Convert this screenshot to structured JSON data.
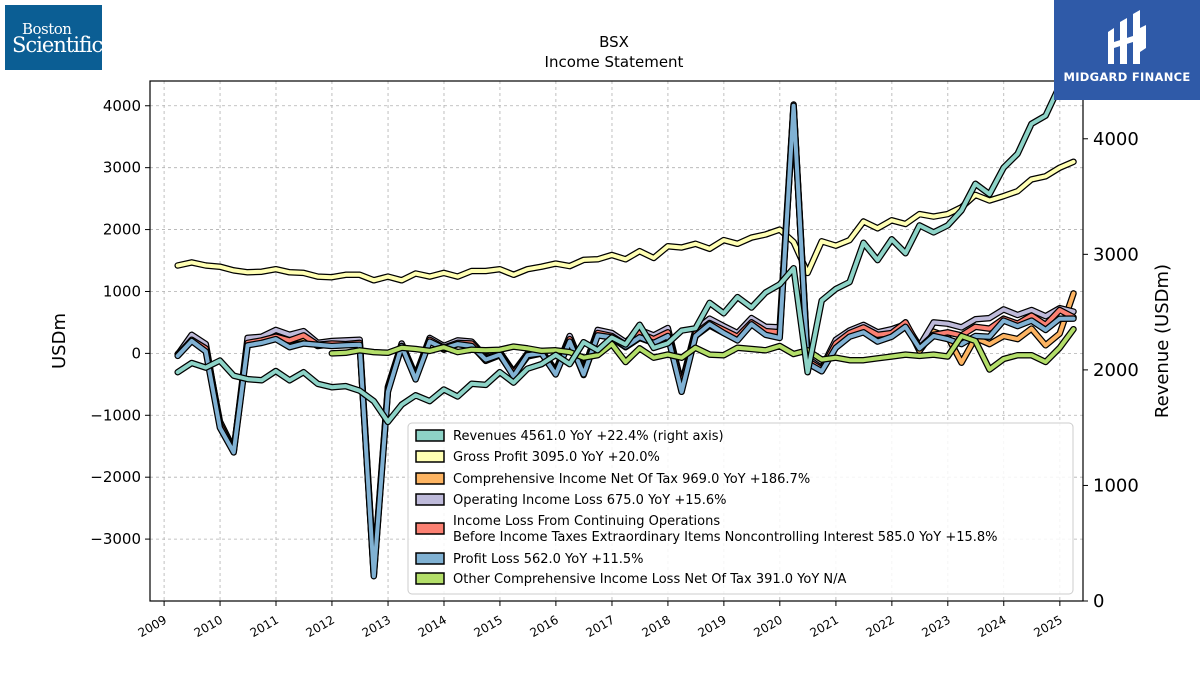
{
  "logos": {
    "left": {
      "line1": "Boston",
      "line2": "Scientific"
    },
    "right": {
      "brand": "MIDGARD FINANCE"
    }
  },
  "chart_data": {
    "type": "line",
    "title": "BSX",
    "subtitle": "Income Statement",
    "ylabel_left": "USDm",
    "ylabel_right": "Revenue (USDm)",
    "ylim_left": [
      -4000,
      4400
    ],
    "ylim_right": [
      0,
      4500
    ],
    "yticks_left": [
      4000,
      3000,
      2000,
      1000,
      0,
      -1000,
      -2000,
      -3000
    ],
    "yticks_left_labels": [
      "4000",
      "3000",
      "2000",
      "1000",
      "0",
      "−1000",
      "−2000",
      "−3000"
    ],
    "yticks_right": [
      4000,
      3000,
      2000,
      1000,
      0
    ],
    "yticks_right_labels": [
      "4000",
      "3000",
      "2000",
      "1000",
      "0"
    ],
    "xticks": [
      "2009",
      "2010",
      "2011",
      "2012",
      "2013",
      "2014",
      "2015",
      "2016",
      "2017",
      "2018",
      "2019",
      "2020",
      "2021",
      "2022",
      "2023",
      "2024",
      "2025"
    ],
    "grid": true,
    "legend_position": "lower right",
    "x": [
      "2009-03-31",
      "2009-06-30",
      "2009-09-30",
      "2009-12-31",
      "2010-03-31",
      "2010-06-30",
      "2010-09-30",
      "2010-12-31",
      "2011-03-31",
      "2011-06-30",
      "2011-09-30",
      "2011-12-31",
      "2012-03-31",
      "2012-06-30",
      "2012-09-30",
      "2012-12-31",
      "2013-03-31",
      "2013-06-30",
      "2013-09-30",
      "2013-12-31",
      "2014-03-31",
      "2014-06-30",
      "2014-09-30",
      "2014-12-31",
      "2015-03-31",
      "2015-06-30",
      "2015-09-30",
      "2015-12-31",
      "2016-03-31",
      "2016-06-30",
      "2016-09-30",
      "2016-12-31",
      "2017-03-31",
      "2017-06-30",
      "2017-09-30",
      "2017-12-31",
      "2018-03-31",
      "2018-06-30",
      "2018-09-30",
      "2018-12-31",
      "2019-03-31",
      "2019-06-30",
      "2019-09-30",
      "2019-12-31",
      "2020-03-31",
      "2020-06-30",
      "2020-09-30",
      "2020-12-31",
      "2021-03-31",
      "2021-06-30",
      "2021-09-30",
      "2021-12-31",
      "2022-03-31",
      "2022-06-30",
      "2022-09-30",
      "2022-12-31",
      "2023-03-31",
      "2023-06-30",
      "2023-09-30",
      "2023-12-31",
      "2024-03-31",
      "2024-06-30",
      "2024-09-30",
      "2024-12-31",
      "2025-03-31"
    ],
    "series": [
      {
        "name": "Revenues",
        "legend": "Revenues  4561.0 YoY +22.4% (right axis)",
        "axis": "right",
        "color": "#8dd3c7",
        "values": [
          1980,
          2060,
          2020,
          2080,
          1950,
          1920,
          1910,
          1990,
          1910,
          1980,
          1880,
          1850,
          1860,
          1820,
          1730,
          1550,
          1700,
          1780,
          1730,
          1830,
          1770,
          1880,
          1870,
          1980,
          1890,
          2010,
          2050,
          2130,
          2050,
          2240,
          2170,
          2280,
          2220,
          2390,
          2190,
          2230,
          2340,
          2360,
          2580,
          2490,
          2630,
          2540,
          2670,
          2740,
          2880,
          1980,
          2600,
          2700,
          2760,
          3100,
          2950,
          3130,
          3010,
          3250,
          3190,
          3250,
          3380,
          3610,
          3520,
          3750,
          3870,
          4130,
          4200,
          4460,
          4561
        ]
      },
      {
        "name": "Gross Profit",
        "legend": "Gross Profit  3095.0 YoY +20.0%",
        "axis": "left",
        "color": "#ffffb3",
        "values": [
          1420,
          1470,
          1420,
          1400,
          1340,
          1310,
          1320,
          1360,
          1310,
          1300,
          1240,
          1230,
          1270,
          1270,
          1180,
          1240,
          1180,
          1290,
          1240,
          1300,
          1240,
          1330,
          1330,
          1360,
          1270,
          1360,
          1400,
          1450,
          1410,
          1510,
          1520,
          1590,
          1520,
          1650,
          1540,
          1730,
          1710,
          1770,
          1690,
          1830,
          1770,
          1870,
          1920,
          2000,
          1800,
          1300,
          1810,
          1740,
          1830,
          2130,
          2020,
          2150,
          2090,
          2250,
          2210,
          2250,
          2360,
          2560,
          2470,
          2540,
          2620,
          2810,
          2860,
          3000,
          3095
        ]
      },
      {
        "name": "Comprehensive Income Net Of Tax",
        "legend": "Comprehensive Income Net Of Tax  969.0 YoY +186.7%",
        "axis": "left",
        "color": "#fdb462",
        "values": [
          -10,
          210,
          100,
          -1100,
          -1550,
          150,
          190,
          290,
          210,
          250,
          120,
          150,
          140,
          160,
          -3580,
          -600,
          110,
          -400,
          210,
          60,
          150,
          130,
          -120,
          -30,
          -350,
          -50,
          0,
          -320,
          200,
          -350,
          300,
          250,
          100,
          250,
          170,
          270,
          -550,
          280,
          450,
          330,
          220,
          470,
          330,
          290,
          3980,
          -150,
          -280,
          120,
          310,
          390,
          280,
          290,
          500,
          40,
          350,
          270,
          -150,
          250,
          150,
          280,
          230,
          400,
          130,
          320,
          969
        ]
      },
      {
        "name": "Operating Income Loss",
        "legend": "Operating Income Loss  675.0 YoY +15.6%",
        "axis": "left",
        "color": "#bebada",
        "values": [
          -20,
          300,
          150,
          -1150,
          -1580,
          250,
          270,
          380,
          300,
          360,
          170,
          200,
          210,
          220,
          -3530,
          -540,
          160,
          -360,
          250,
          120,
          210,
          190,
          -60,
          20,
          -300,
          0,
          40,
          -280,
          280,
          -270,
          380,
          330,
          180,
          380,
          290,
          410,
          -500,
          380,
          560,
          440,
          330,
          570,
          430,
          420,
          4020,
          -80,
          -240,
          220,
          370,
          460,
          340,
          390,
          470,
          120,
          500,
          480,
          420,
          550,
          570,
          710,
          620,
          700,
          600,
          730,
          675
        ]
      },
      {
        "name": "Income Loss From Continuing Operations Before Income Taxes Extraordinary Items Noncontrolling Interest",
        "legend_line1": "Income Loss From Continuing Operations",
        "legend_line2": "Before Income Taxes Extraordinary Items Noncontrolling Interest  585.0 YoY +15.8%",
        "axis": "left",
        "color": "#fb8072",
        "values": [
          -30,
          220,
          80,
          -1150,
          -1580,
          170,
          210,
          270,
          210,
          290,
          140,
          160,
          150,
          170,
          -3560,
          -570,
          120,
          -380,
          220,
          90,
          170,
          160,
          -80,
          -10,
          -320,
          -20,
          10,
          -300,
          230,
          -320,
          330,
          280,
          140,
          330,
          230,
          340,
          -520,
          320,
          490,
          380,
          270,
          500,
          360,
          340,
          3990,
          -120,
          -260,
          160,
          330,
          420,
          300,
          330,
          500,
          90,
          300,
          340,
          290,
          430,
          400,
          560,
          480,
          610,
          460,
          700,
          585
        ]
      },
      {
        "name": "Profit Loss",
        "legend": "Profit Loss  562.0 YoY +11.5%",
        "axis": "left",
        "color": "#80b1d3",
        "values": [
          -40,
          200,
          30,
          -1200,
          -1600,
          130,
          170,
          230,
          100,
          160,
          140,
          120,
          130,
          140,
          -3600,
          -620,
          120,
          -420,
          190,
          80,
          150,
          120,
          -100,
          -20,
          -370,
          -30,
          0,
          -340,
          190,
          -340,
          290,
          260,
          110,
          260,
          170,
          280,
          -620,
          280,
          470,
          330,
          210,
          470,
          300,
          250,
          4000,
          -160,
          -290,
          90,
          270,
          340,
          190,
          270,
          430,
          80,
          280,
          230,
          150,
          280,
          270,
          530,
          440,
          530,
          380,
          560,
          562
        ]
      },
      {
        "name": "Other Comprehensive Income Loss Net Of Tax",
        "legend": "Other Comprehensive Income Loss Net Of Tax  391.0 YoY N/A",
        "axis": "left",
        "color": "#b3de69",
        "values": [
          null,
          null,
          null,
          null,
          null,
          null,
          null,
          null,
          null,
          null,
          null,
          0,
          10,
          50,
          20,
          10,
          90,
          70,
          40,
          100,
          20,
          60,
          50,
          60,
          110,
          80,
          40,
          50,
          20,
          -70,
          -30,
          150,
          -140,
          80,
          -70,
          -20,
          -70,
          90,
          -20,
          -30,
          90,
          70,
          50,
          120,
          -10,
          50,
          -100,
          -70,
          -110,
          -110,
          -80,
          -50,
          -20,
          -40,
          -20,
          -50,
          280,
          200,
          -260,
          -90,
          -30,
          -30,
          -140,
          90,
          391
        ]
      }
    ]
  }
}
